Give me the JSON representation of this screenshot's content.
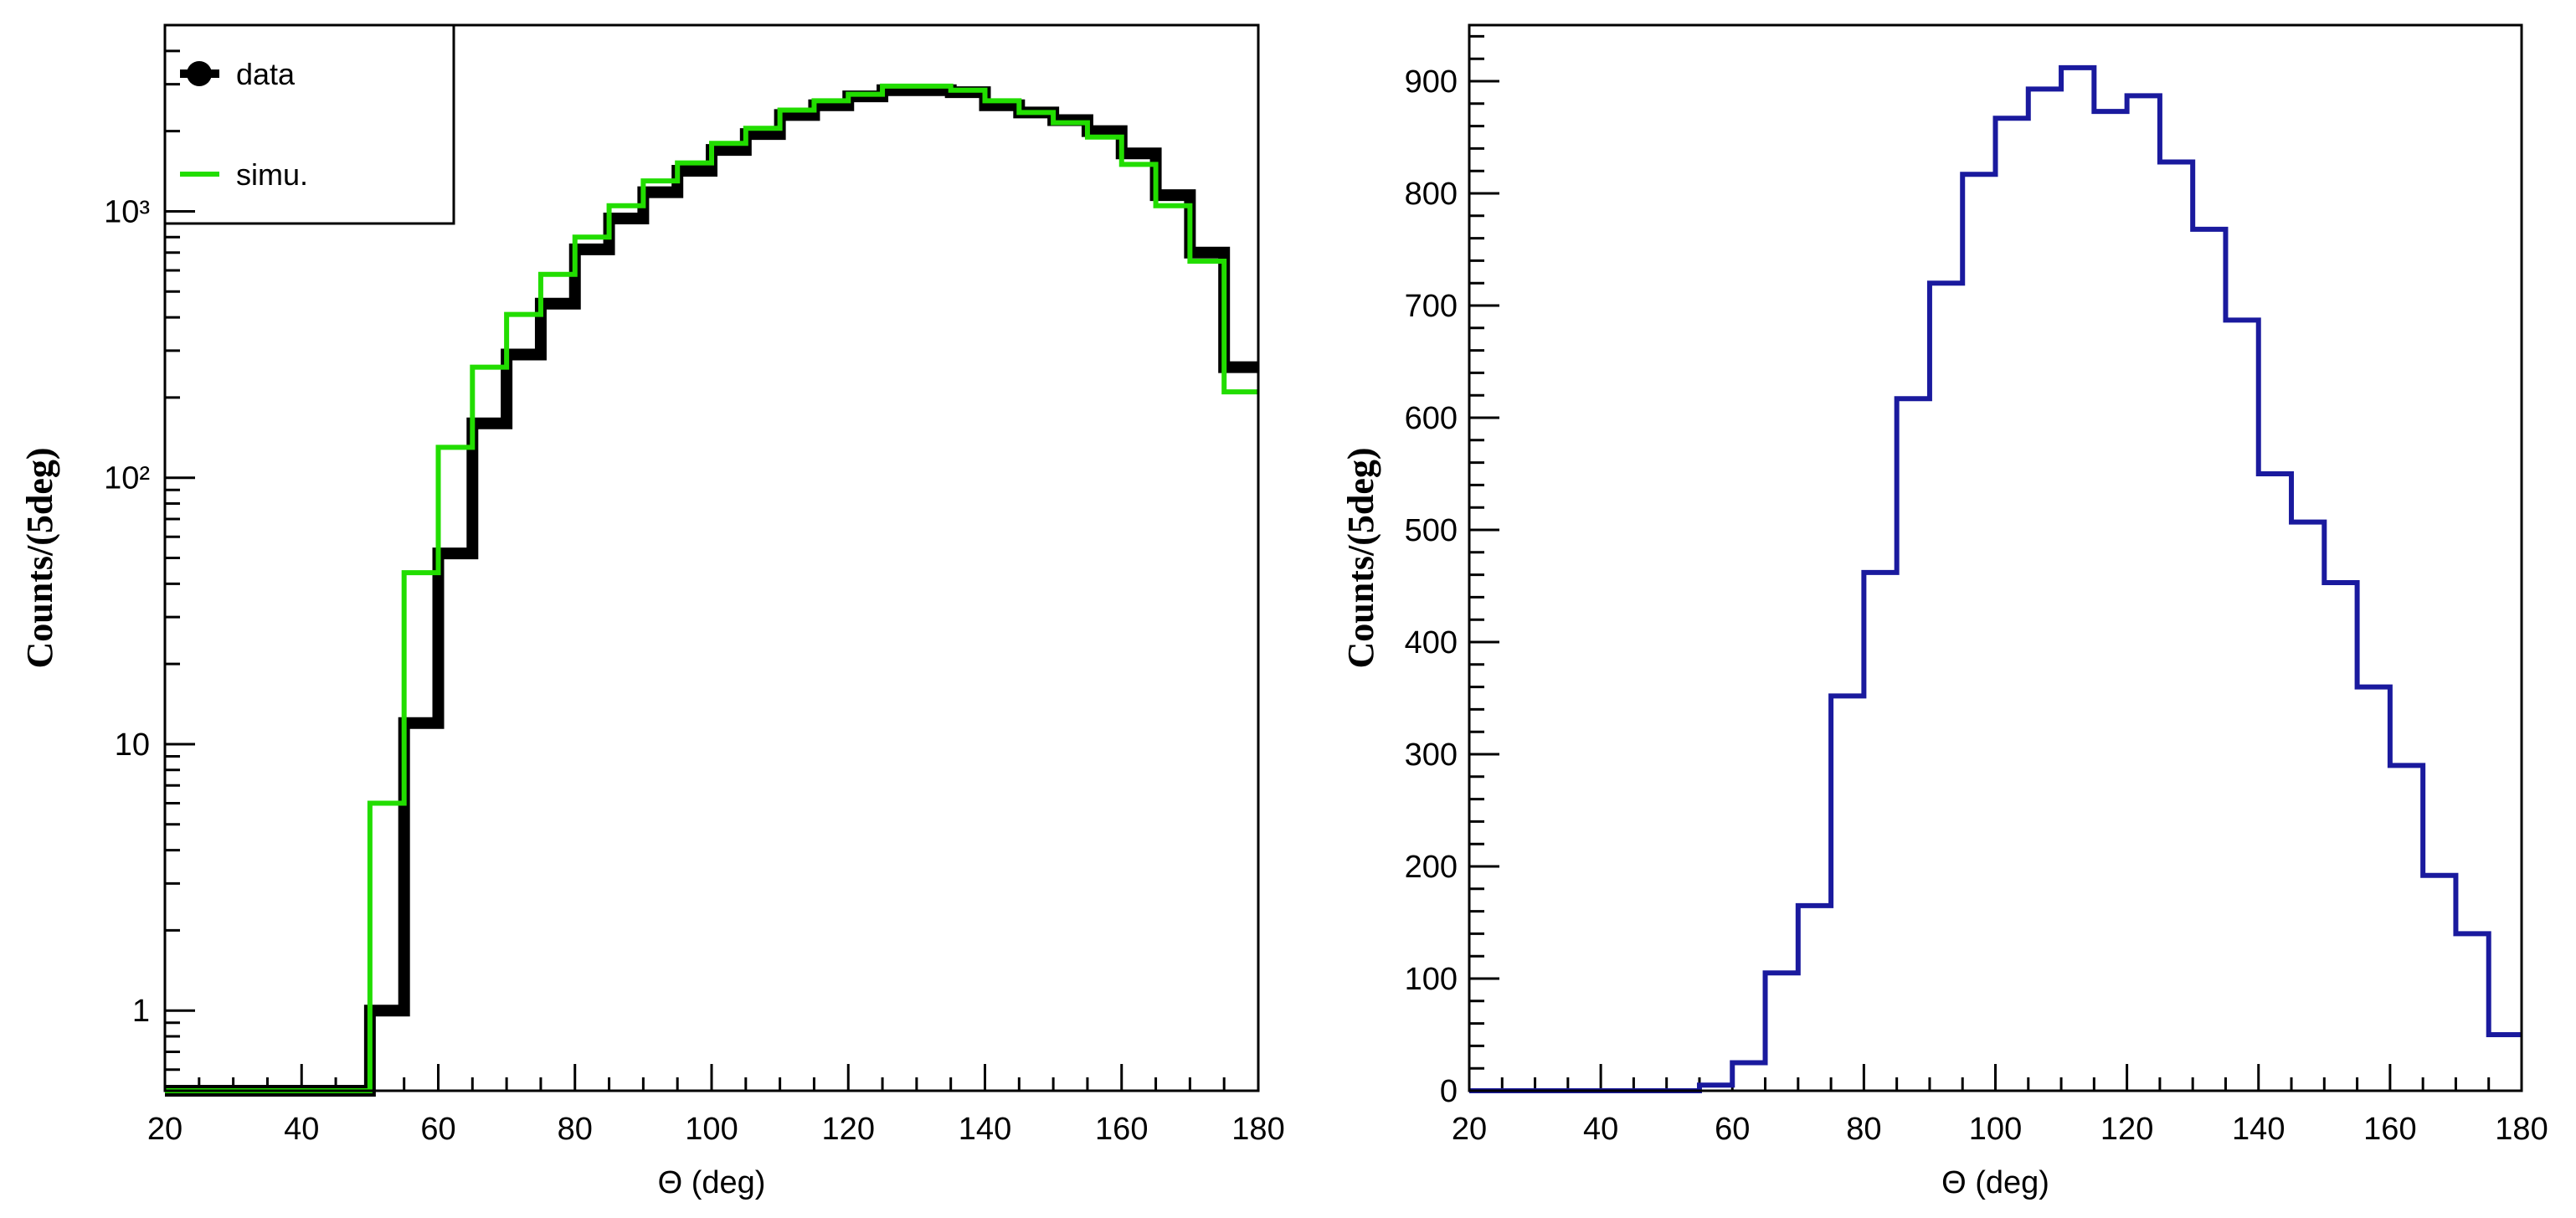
{
  "chart_data": [
    {
      "type": "histogram",
      "xlabel": "Θ (deg)",
      "ylabel": "Counts/(5deg)",
      "xlim": [
        20,
        180
      ],
      "ylim": [
        0.5,
        5000
      ],
      "yscale": "log",
      "bin_width": 5,
      "x_ticks": [
        "20",
        "40",
        "60",
        "80",
        "100",
        "120",
        "140",
        "160",
        "180"
      ],
      "y_ticks": [
        {
          "value": 1,
          "label": "1"
        },
        {
          "value": 10,
          "label": "10"
        },
        {
          "value": 100,
          "label": "10²"
        },
        {
          "value": 1000,
          "label": "10³"
        }
      ],
      "legend": {
        "position": "top-left",
        "entries": [
          "data",
          "simu."
        ]
      },
      "bin_edges": [
        50,
        55,
        60,
        65,
        70,
        75,
        80,
        85,
        90,
        95,
        100,
        105,
        110,
        115,
        120,
        125,
        130,
        135,
        140,
        145,
        150,
        155,
        160,
        165,
        170,
        175,
        180
      ],
      "series": [
        {
          "name": "data",
          "color": "#000000",
          "values": [
            1,
            12,
            52,
            160,
            290,
            450,
            720,
            940,
            1180,
            1420,
            1700,
            1950,
            2300,
            2500,
            2700,
            2850,
            2850,
            2800,
            2500,
            2350,
            2200,
            2000,
            1650,
            1150,
            700,
            260
          ]
        },
        {
          "name": "simu.",
          "color": "#22dd00",
          "values": [
            6,
            44,
            130,
            260,
            410,
            580,
            800,
            1050,
            1300,
            1520,
            1800,
            2050,
            2400,
            2600,
            2750,
            2950,
            2950,
            2850,
            2600,
            2350,
            2150,
            1900,
            1500,
            1050,
            650,
            210
          ]
        }
      ]
    },
    {
      "type": "histogram",
      "xlabel": "Θ (deg)",
      "ylabel": "Counts/(5deg)",
      "xlim": [
        20,
        180
      ],
      "ylim": [
        0,
        950
      ],
      "x_ticks": [
        "20",
        "40",
        "60",
        "80",
        "100",
        "120",
        "140",
        "160",
        "180"
      ],
      "y_ticks": [
        "0",
        "100",
        "200",
        "300",
        "400",
        "500",
        "600",
        "700",
        "800",
        "900"
      ],
      "bin_edges": [
        20,
        25,
        30,
        35,
        40,
        45,
        50,
        55,
        60,
        65,
        70,
        75,
        80,
        85,
        90,
        95,
        100,
        105,
        110,
        115,
        120,
        125,
        130,
        135,
        140,
        145,
        150,
        155,
        160,
        165,
        170,
        175,
        180
      ],
      "series": [
        {
          "color": "#1a1a9e",
          "values": [
            0,
            0,
            0,
            0,
            0,
            0,
            0,
            5,
            25,
            105,
            165,
            352,
            462,
            617,
            720,
            817,
            867,
            893,
            912,
            873,
            887,
            828,
            768,
            687,
            550,
            507,
            453,
            360,
            290,
            192,
            140,
            50
          ]
        }
      ]
    }
  ]
}
